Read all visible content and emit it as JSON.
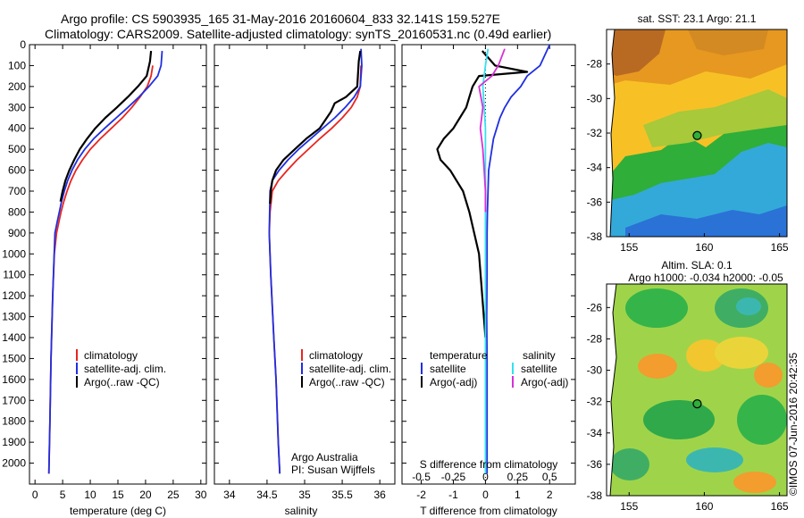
{
  "header": {
    "line1": "Argo profile: CS 5903935_165 31-May-2016 20160604_833 32.141S 159.527E",
    "line2": "Climatology: CARS2009. Satellite-adjusted climatology: synTS_20160531.nc (0.49d earlier)"
  },
  "colors": {
    "climatology": "#e8251f",
    "satellite": "#1f2fe0",
    "argo": "#000000",
    "salinity_sat": "#35e0f0",
    "salinity_argo": "#d632d6"
  },
  "chart_data": [
    {
      "id": "temperature",
      "type": "line",
      "xlabel": "temperature (deg C)",
      "ylabel": "",
      "xlim": [
        -1,
        31
      ],
      "ylim": [
        2100,
        0
      ],
      "xticks": [
        0,
        5,
        10,
        15,
        20,
        25,
        30
      ],
      "yticks": [
        0,
        100,
        200,
        300,
        400,
        500,
        600,
        700,
        800,
        900,
        1000,
        1100,
        1200,
        1300,
        1400,
        1500,
        1600,
        1700,
        1800,
        1900,
        2000
      ],
      "legend": [
        "climatology",
        "satellite-adj. clim.",
        "Argo(..raw -QC)"
      ],
      "series": [
        {
          "name": "climatology",
          "color": "climatology",
          "x": [
            21.3,
            21.0,
            20.3,
            19.0,
            17.5,
            15.8,
            13.8,
            11.8,
            10.0,
            8.6,
            7.4,
            6.5,
            5.8,
            5.2,
            4.7,
            4.3,
            3.9,
            3.5,
            3.2,
            2.9,
            2.7,
            2.5
          ],
          "y": [
            100,
            150,
            200,
            250,
            300,
            350,
            400,
            450,
            500,
            550,
            600,
            650,
            700,
            750,
            800,
            850,
            900,
            1000,
            1200,
            1500,
            1800,
            2050
          ]
        },
        {
          "name": "satellite-adj. clim.",
          "color": "satellite",
          "x": [
            23.0,
            22.8,
            22.2,
            20.6,
            18.8,
            16.8,
            14.7,
            12.6,
            10.6,
            9.0,
            7.7,
            6.7,
            5.9,
            5.3,
            4.8,
            4.4,
            4.0,
            3.6,
            3.2,
            2.9,
            2.7,
            2.5
          ],
          "y": [
            30,
            100,
            150,
            200,
            250,
            300,
            350,
            400,
            450,
            500,
            550,
            600,
            650,
            700,
            750,
            800,
            850,
            900,
            1200,
            1500,
            1800,
            2050
          ]
        },
        {
          "name": "Argo(..raw -QC)",
          "color": "argo",
          "x": [
            21.0,
            20.8,
            20.2,
            18.6,
            16.8,
            14.8,
            12.7,
            10.9,
            9.4,
            8.1,
            7.1,
            6.2,
            5.5,
            5.0,
            4.6
          ],
          "y": [
            30,
            80,
            150,
            200,
            250,
            300,
            350,
            400,
            450,
            500,
            550,
            600,
            650,
            700,
            750
          ]
        }
      ]
    },
    {
      "id": "salinity",
      "type": "line",
      "xlabel": "salinity",
      "ylabel": "",
      "xlim": [
        33.8,
        36.2
      ],
      "ylim": [
        2100,
        0
      ],
      "xticks": [
        34,
        34.5,
        35,
        35.5,
        36
      ],
      "xticklabels": [
        "34",
        "34.5",
        "35",
        "35.5",
        "36"
      ],
      "legend": [
        "climatology",
        "satellite-adj. clim.",
        "Argo(..raw -QC)"
      ],
      "annotations": [
        "Argo Australia",
        "PI: Susan Wijffels"
      ],
      "series": [
        {
          "name": "climatology",
          "color": "climatology",
          "x": [
            35.75,
            35.74,
            35.7,
            35.62,
            35.5,
            35.36,
            35.2,
            35.05,
            34.9,
            34.77,
            34.65,
            34.57,
            34.54,
            34.53,
            34.55,
            34.59,
            34.62,
            34.65,
            34.67
          ],
          "y": [
            100,
            200,
            250,
            300,
            350,
            400,
            450,
            500,
            550,
            600,
            650,
            700,
            800,
            900,
            1100,
            1400,
            1600,
            1900,
            2050
          ]
        },
        {
          "name": "satellite-adj. clim.",
          "color": "satellite",
          "x": [
            35.75,
            35.76,
            35.74,
            35.66,
            35.54,
            35.4,
            35.24,
            35.08,
            34.92,
            34.78,
            34.66,
            34.57,
            34.54,
            34.53,
            34.55,
            34.59,
            34.62,
            34.65,
            34.67
          ],
          "y": [
            20,
            100,
            200,
            250,
            300,
            350,
            400,
            450,
            500,
            550,
            600,
            650,
            700,
            900,
            1100,
            1400,
            1600,
            1900,
            2050
          ]
        },
        {
          "name": "Argo(..raw -QC)",
          "color": "argo",
          "x": [
            35.74,
            35.72,
            35.7,
            35.55,
            35.4,
            35.35,
            35.2,
            35.02,
            34.87,
            34.72,
            34.62,
            34.57,
            34.55,
            34.54
          ],
          "y": [
            30,
            80,
            200,
            250,
            280,
            320,
            400,
            450,
            500,
            550,
            600,
            650,
            700,
            760
          ]
        }
      ]
    },
    {
      "id": "difference",
      "type": "line",
      "xlabel": "T difference from climatology",
      "xlabel_top": "S difference from climatology",
      "xlim": [
        -2.6,
        2.8
      ],
      "ylim": [
        2100,
        0
      ],
      "xticks": [
        -2,
        -1,
        0,
        1,
        2
      ],
      "xticks_top": [
        -0.5,
        -0.25,
        0,
        0.25,
        0.5
      ],
      "xticklabels_top": [
        "-0.5",
        "-0.25",
        "0",
        "0.25",
        "0.5"
      ],
      "legend_headers": [
        "temperature",
        "salinity"
      ],
      "legend": [
        "satellite",
        "Argo(-adj)",
        "satellite",
        "Argo(-adj)"
      ],
      "series": [
        {
          "name": "satellite",
          "group": "temperature",
          "color": "satellite",
          "x": [
            2.0,
            1.7,
            1.3,
            1.1,
            0.8,
            0.6,
            0.45,
            0.35,
            0.25,
            0.2,
            0.15,
            0.1,
            0.08,
            0.06,
            0.05,
            0.05,
            0.04,
            0.05,
            0.05,
            0.05
          ],
          "y": [
            0,
            100,
            150,
            200,
            250,
            300,
            350,
            400,
            450,
            500,
            550,
            600,
            700,
            800,
            900,
            1100,
            1300,
            1500,
            1800,
            2050
          ]
        },
        {
          "name": "Argo(-adj)",
          "group": "temperature",
          "color": "argo",
          "x": [
            -0.1,
            0.3,
            1.3,
            -0.2,
            -0.4,
            -0.5,
            -0.6,
            -0.8,
            -1.0,
            -1.3,
            -1.5,
            -1.4,
            -1.1,
            -0.9,
            -0.7,
            -0.5,
            -0.35,
            -0.2,
            -0.1,
            0.0
          ],
          "y": [
            30,
            100,
            130,
            150,
            200,
            250,
            300,
            350,
            400,
            450,
            500,
            550,
            600,
            650,
            700,
            800,
            900,
            1000,
            1200,
            1400
          ]
        },
        {
          "name": "satellite",
          "group": "salinity",
          "color": "salinity_sat",
          "x": [
            0.02,
            0.0,
            -0.02,
            -0.01,
            0.0,
            0.0,
            0.0,
            0.0,
            0.0,
            0.0,
            0.0,
            0.0
          ],
          "y": [
            20,
            100,
            200,
            300,
            400,
            500,
            700,
            900,
            1200,
            1500,
            1800,
            2050
          ]
        },
        {
          "name": "Argo(-adj)",
          "group": "salinity",
          "color": "salinity_argo",
          "x": [
            0.15,
            0.1,
            0.05,
            -0.05,
            -0.02,
            -0.04,
            -0.02,
            -0.01,
            0.0,
            0.0
          ],
          "y": [
            20,
            100,
            150,
            200,
            300,
            400,
            500,
            600,
            700,
            800
          ]
        }
      ]
    },
    {
      "id": "sst-map",
      "type": "heatmap",
      "title": "sat. SST: 23.1  Argo: 21.1",
      "xlim": [
        153.5,
        165.5
      ],
      "ylim": [
        -38,
        -26
      ],
      "xticks": [
        155,
        160,
        165
      ],
      "yticks": [
        -28,
        -30,
        -32,
        -34,
        -36,
        -38
      ],
      "marker": {
        "lon": 159.527,
        "lat": -32.141
      }
    },
    {
      "id": "sla-map",
      "type": "heatmap",
      "title": "Altim. SLA: 0.1",
      "subtitle": "Argo h1000: -0.034  h2000: -0.05",
      "xlim": [
        153.5,
        165.5
      ],
      "ylim": [
        -38,
        -24.5
      ],
      "xticks": [
        155,
        160,
        165
      ],
      "yticks": [
        -26,
        -28,
        -30,
        -32,
        -34,
        -36,
        -38
      ],
      "marker": {
        "lon": 159.527,
        "lat": -32.141
      }
    }
  ],
  "credit": "©IMOS 07-Jun-2016 20:42:35"
}
